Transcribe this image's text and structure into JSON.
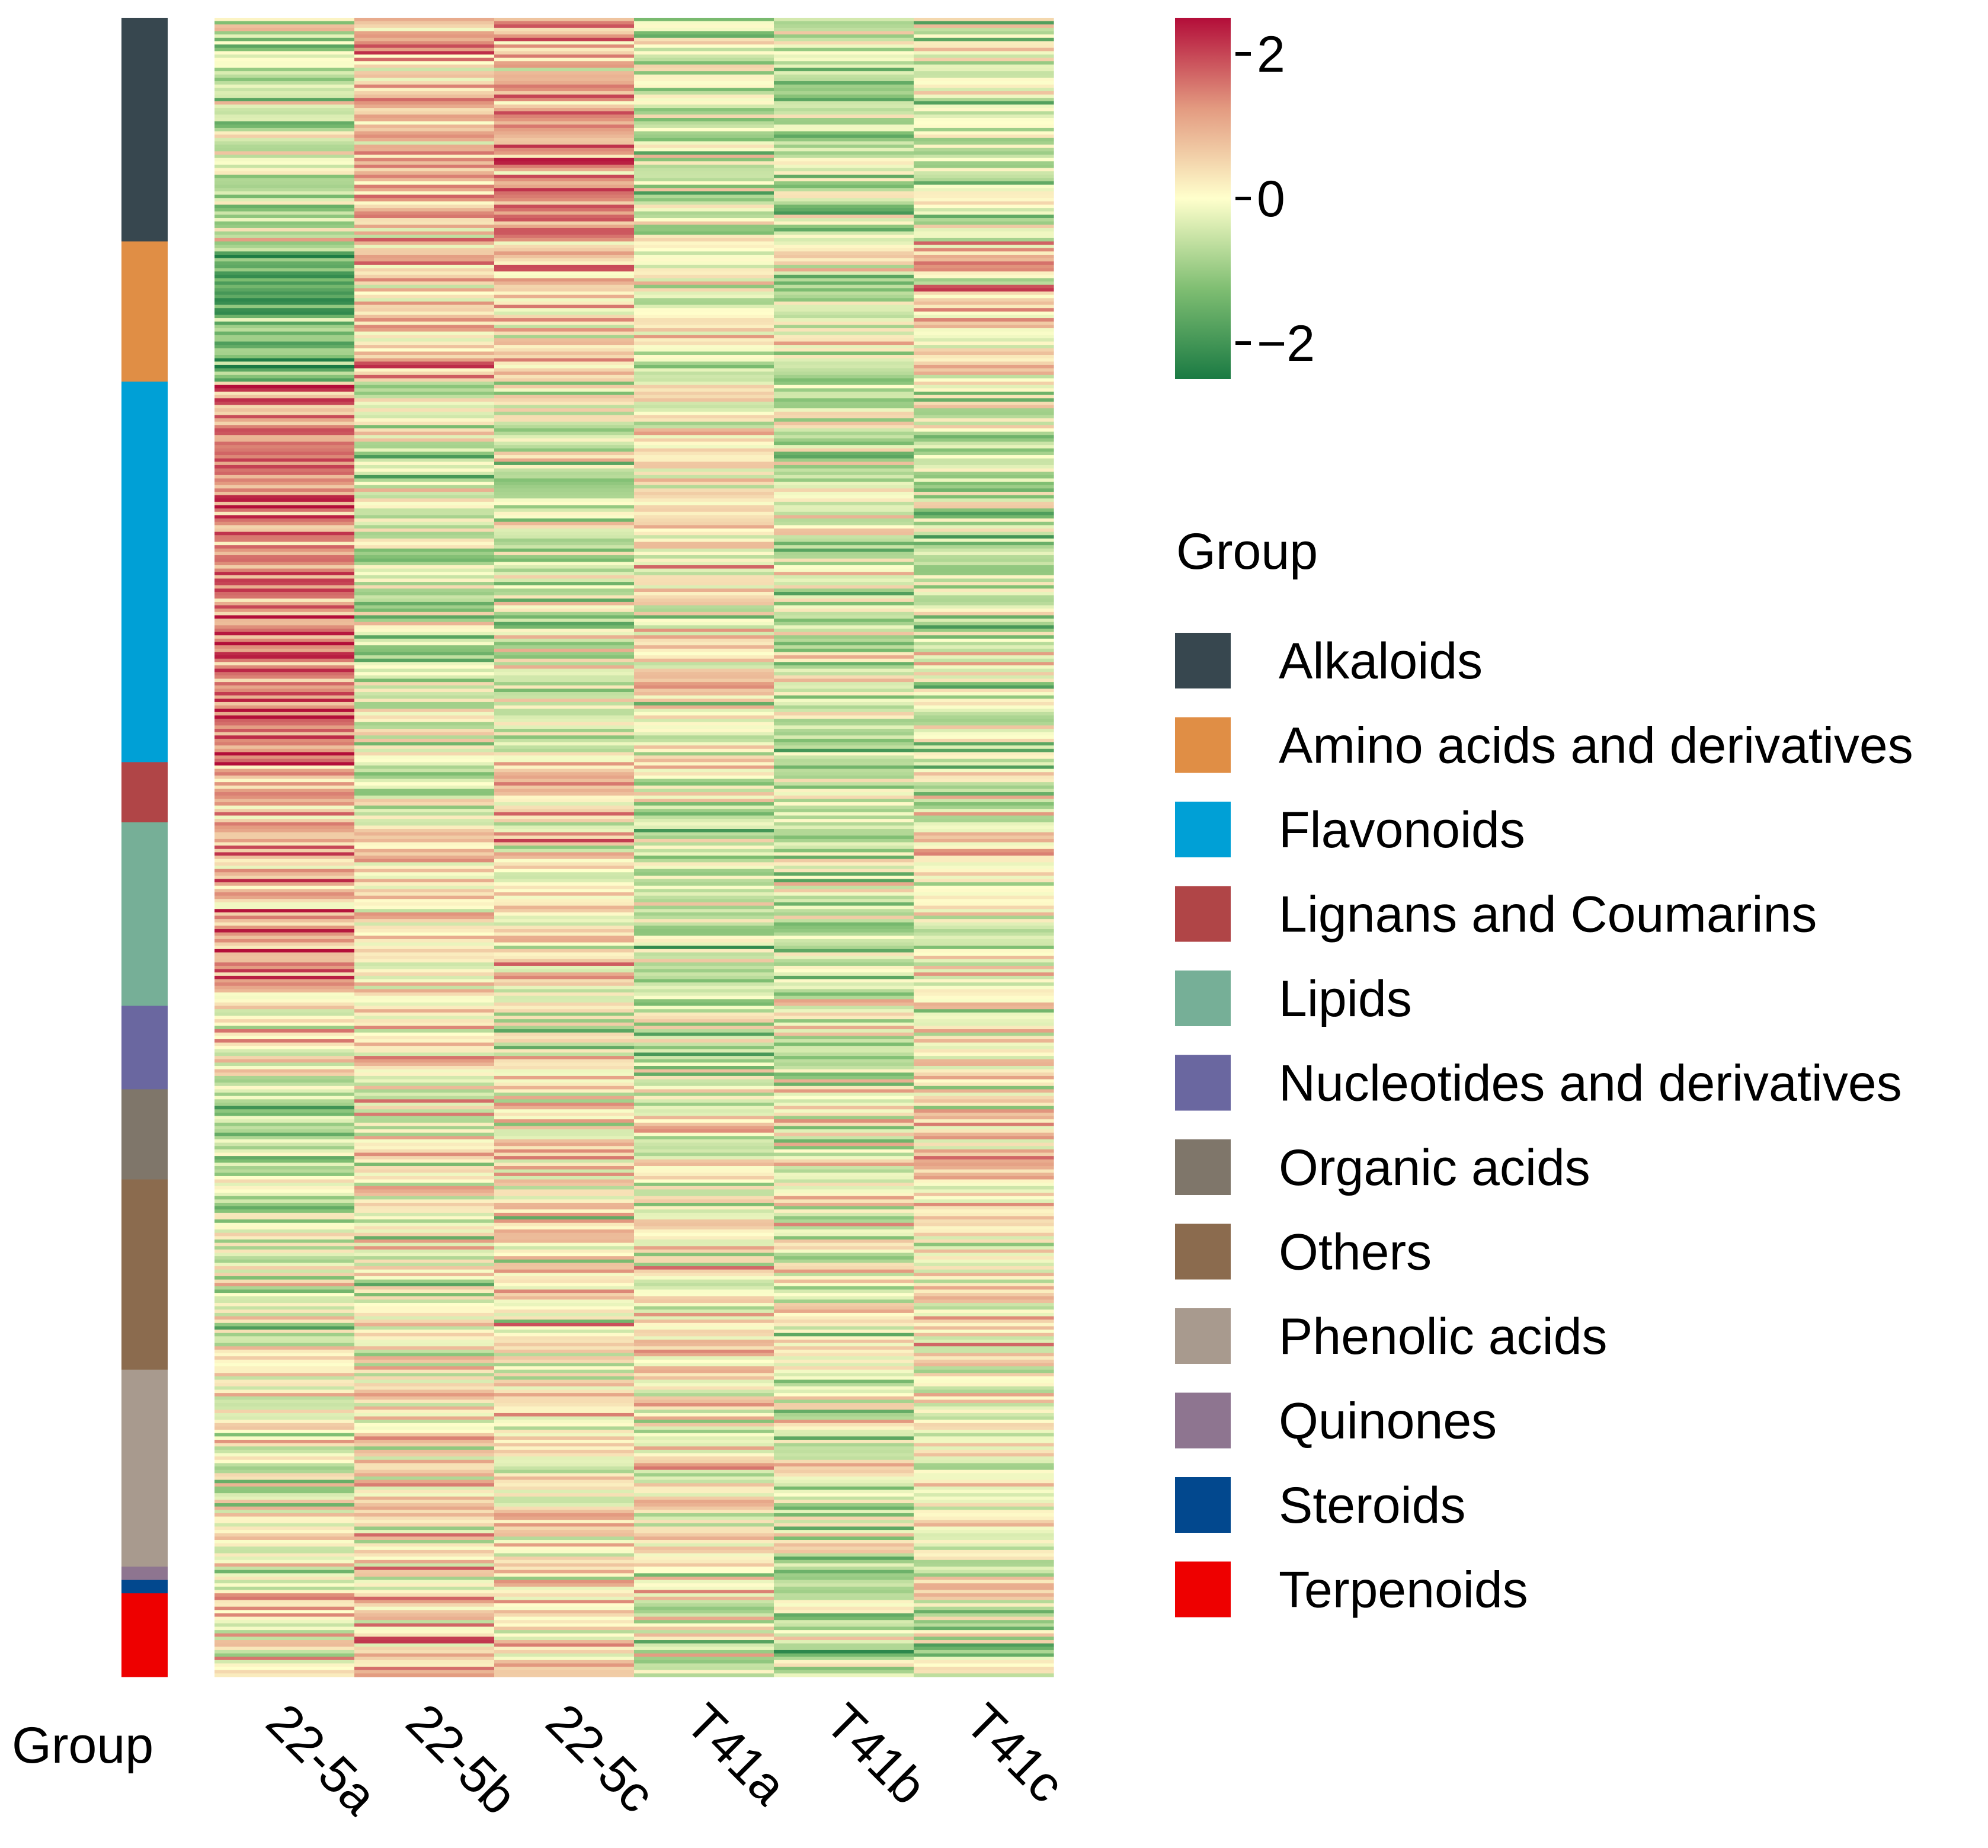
{
  "chart_data": {
    "type": "heatmap",
    "title": "",
    "xlabel": "",
    "ylabel": "",
    "columns": [
      "22-5a",
      "22-5b",
      "22-5c",
      "T41a",
      "T41b",
      "T41c"
    ],
    "row_annotation": {
      "label": "Group",
      "legend_title": "Group",
      "groups": [
        {
          "name": "Alkaloids",
          "color": "#37474F",
          "rows": 67
        },
        {
          "name": "Amino acids and derivatives",
          "color": "#E08E45",
          "rows": 42
        },
        {
          "name": "Flavonoids",
          "color": "#00A0D6",
          "rows": 114
        },
        {
          "name": "Lignans and Coumarins",
          "color": "#B04547",
          "rows": 18
        },
        {
          "name": "Lipids",
          "color": "#76AF97",
          "rows": 55
        },
        {
          "name": "Nucleotides and derivatives",
          "color": "#6A67A0",
          "rows": 25
        },
        {
          "name": "Organic acids",
          "color": "#7F766A",
          "rows": 27
        },
        {
          "name": "Others",
          "color": "#8B6B4E",
          "rows": 57
        },
        {
          "name": "Phenolic acids",
          "color": "#A89A8E",
          "rows": 59
        },
        {
          "name": "Quinones",
          "color": "#8E7590",
          "rows": 4
        },
        {
          "name": "Steroids",
          "color": "#02488E",
          "rows": 4
        },
        {
          "name": "Terpenoids",
          "color": "#EE0000",
          "rows": 25
        }
      ]
    },
    "group_mean_values": [
      [
        -0.6,
        0.9,
        1.1,
        -0.4,
        -0.5,
        -0.3
      ],
      [
        -1.6,
        0.8,
        0.6,
        -0.1,
        -0.2,
        0.4
      ],
      [
        1.5,
        -0.3,
        -0.3,
        0.2,
        -0.4,
        -0.5
      ],
      [
        1.0,
        -0.2,
        0.5,
        -0.2,
        -0.5,
        -0.1
      ],
      [
        0.9,
        0.3,
        0.2,
        -0.6,
        -0.5,
        0.0
      ],
      [
        0.2,
        0.3,
        -0.1,
        -0.5,
        -0.3,
        0.2
      ],
      [
        -0.7,
        0.1,
        0.1,
        0.1,
        -0.1,
        0.3
      ],
      [
        -0.2,
        0.1,
        0.2,
        0.0,
        -0.1,
        0.2
      ],
      [
        -0.1,
        0.3,
        0.2,
        0.1,
        -0.3,
        0.0
      ],
      [
        0.0,
        0.2,
        0.4,
        -0.2,
        -0.3,
        0.0
      ],
      [
        -0.8,
        0.0,
        0.3,
        0.4,
        -0.2,
        0.3
      ],
      [
        0.5,
        0.6,
        0.3,
        -0.2,
        -0.5,
        -0.3
      ]
    ],
    "colorbar": {
      "min": -2.5,
      "max": 2.5,
      "ticks": [
        2,
        0,
        -2
      ],
      "tick_labels": [
        "2",
        "0",
        "−2"
      ],
      "colors": [
        "#1A7A43",
        "#7FBE72",
        "#FFFFCC",
        "#E39A80",
        "#B30D39"
      ]
    }
  }
}
